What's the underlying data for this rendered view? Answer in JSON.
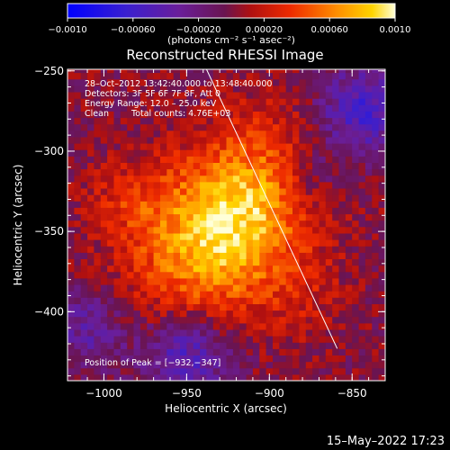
{
  "chart_data": {
    "type": "heatmap",
    "title": "Reconstructed RHESSI Image",
    "xlabel": "Heliocentric X (arcsec)",
    "ylabel": "Heliocentric Y (arcsec)",
    "xlim": [
      -1022,
      -830
    ],
    "ylim": [
      -443,
      -249
    ],
    "x_ticks": [
      -1000,
      -950,
      -900,
      -850
    ],
    "y_ticks": [
      -400,
      -350,
      -300,
      -250
    ],
    "x_tick_labels": [
      "−1000",
      "−950",
      "−900",
      "−850"
    ],
    "y_tick_labels": [
      "−400",
      "−350",
      "−300",
      "−250"
    ],
    "colorbar": {
      "range": [
        -0.001,
        0.001
      ],
      "ticks": [
        -0.001,
        -0.0006,
        -0.0002,
        0.0002,
        0.0006,
        0.001
      ],
      "tick_labels": [
        "−0.0010",
        "−0.00060",
        "−0.00020",
        "0.00020",
        "0.00060",
        "0.0010"
      ],
      "units": "(photons cm⁻² s⁻¹ asec⁻²)"
    },
    "annotations": [
      "28–Oct–2012 13:42:40.000 to 13:48:40.000",
      "Detectors: 3F 5F 6F 7F 8F, Att 0",
      "Energy Range: 12.0 – 25.0 keV",
      "Clean",
      "Total counts: 4.76E+03",
      "Position of Peak = [−932,−347]"
    ],
    "peak": [
      -932,
      -347
    ],
    "limb_line": [
      [
        -938,
        -249
      ],
      [
        -859,
        -423
      ]
    ],
    "map_description": "Bright emission concentrated around (-932,-347) extending NW-SE along the limb; negative (dark blue) residuals in upper-right and lower-middle regions."
  },
  "footer": {
    "timestamp": "15–May–2022 17:23"
  }
}
